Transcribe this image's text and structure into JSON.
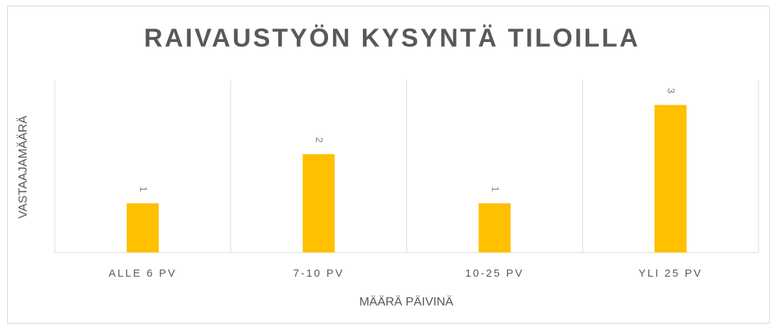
{
  "chart_data": {
    "type": "bar",
    "title": "RAIVAUSTYÖN KYSYNTÄ TILOILLA",
    "x_label": "MÄÄRÄ PÄIVINÄ",
    "y_label": "VASTAAJAMÄÄRÄ",
    "categories": [
      "ALLE 6 PV",
      "7-10 PV",
      "10-25 PV",
      "YLI 25 PV"
    ],
    "values": [
      1,
      2,
      1,
      3
    ],
    "color": "#ffc000",
    "ylim": [
      0,
      3.5
    ],
    "grid": true
  }
}
